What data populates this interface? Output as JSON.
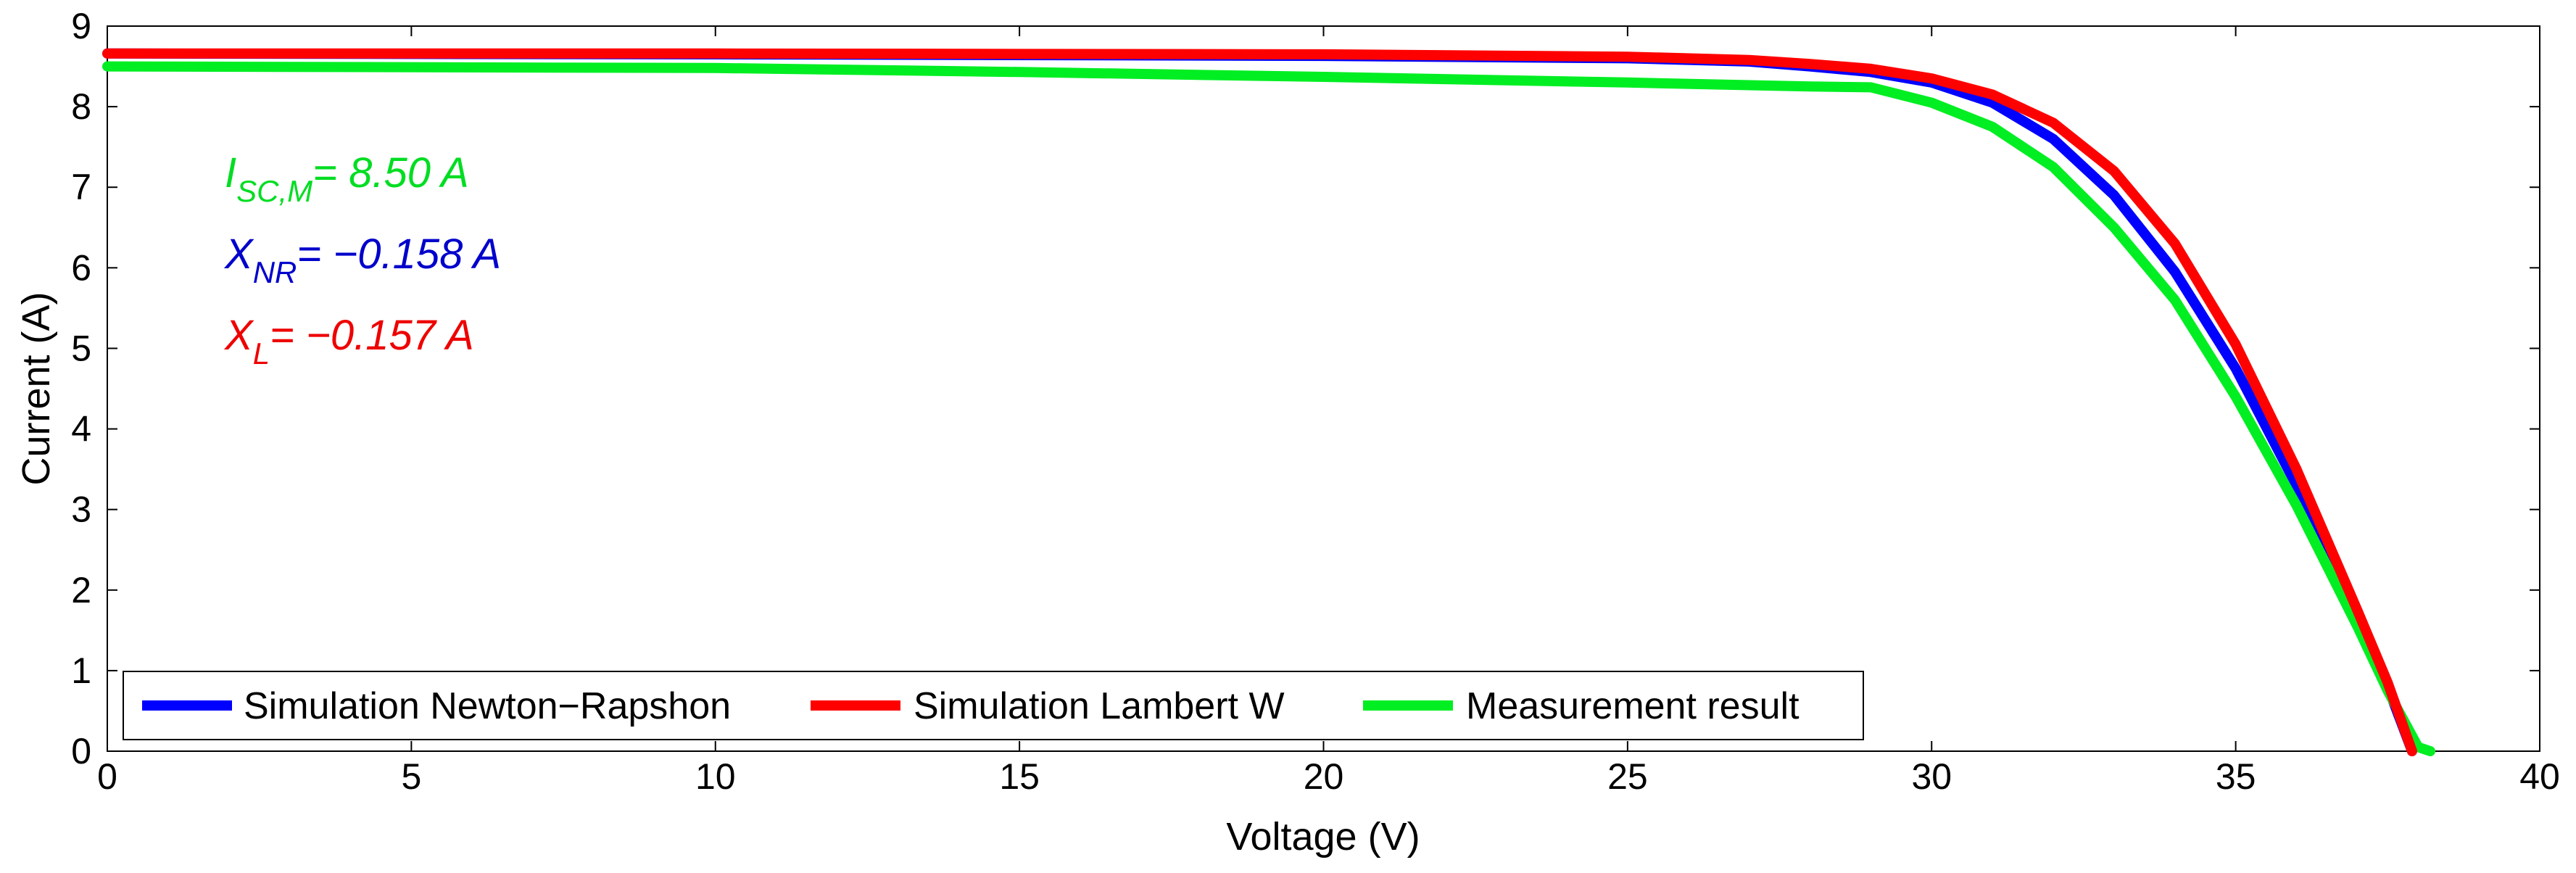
{
  "chart_data": {
    "type": "line",
    "title": "",
    "xlabel": "Voltage (V)",
    "ylabel": "Current (A)",
    "xlim": [
      0,
      40
    ],
    "ylim": [
      0,
      9
    ],
    "xticks": [
      "0",
      "5",
      "10",
      "15",
      "20",
      "25",
      "30",
      "35",
      "40"
    ],
    "yticks": [
      "0",
      "1",
      "2",
      "3",
      "4",
      "5",
      "6",
      "7",
      "8",
      "9"
    ],
    "grid": false,
    "legend_position": "bottom-left",
    "series": [
      {
        "name": "Simulation Newton−Rapshon",
        "color": "#0000ff",
        "x": [
          0,
          10,
          20,
          25,
          27,
          28,
          29,
          30,
          31,
          32,
          33,
          34,
          35,
          36,
          37,
          37.5,
          37.9
        ],
        "y": [
          8.66,
          8.65,
          8.63,
          8.6,
          8.56,
          8.5,
          8.43,
          8.3,
          8.05,
          7.6,
          6.9,
          5.95,
          4.75,
          3.3,
          1.7,
          0.8,
          0.0
        ]
      },
      {
        "name": "Simulation Lambert W",
        "color": "#ff0000",
        "x": [
          0,
          10,
          20,
          25,
          27,
          28,
          29,
          30,
          31,
          32,
          33,
          34,
          35,
          36,
          37,
          37.5,
          37.9
        ],
        "y": [
          8.66,
          8.66,
          8.65,
          8.62,
          8.58,
          8.53,
          8.47,
          8.35,
          8.15,
          7.8,
          7.2,
          6.3,
          5.05,
          3.5,
          1.75,
          0.85,
          0.0
        ]
      },
      {
        "name": "Measurement result",
        "color": "#00ee22",
        "x": [
          0,
          10,
          15,
          20,
          25,
          28,
          29,
          30,
          31,
          32,
          33,
          34,
          35,
          36,
          37,
          37.5,
          38.0,
          38.2
        ],
        "y": [
          8.5,
          8.48,
          8.43,
          8.37,
          8.3,
          8.25,
          8.24,
          8.05,
          7.75,
          7.25,
          6.5,
          5.6,
          4.4,
          3.05,
          1.55,
          0.75,
          0.05,
          0.0
        ]
      }
    ],
    "annotations": [
      {
        "symbol": "I",
        "subscript": "SC,M",
        "value": "= 8.50 A",
        "color": "#00dd22"
      },
      {
        "symbol": "X",
        "subscript": "NR",
        "value": "= −0.158 A",
        "color": "#0000cc"
      },
      {
        "symbol": "X",
        "subscript": "L",
        "value": "= −0.157 A",
        "color": "#ee0000"
      }
    ]
  }
}
